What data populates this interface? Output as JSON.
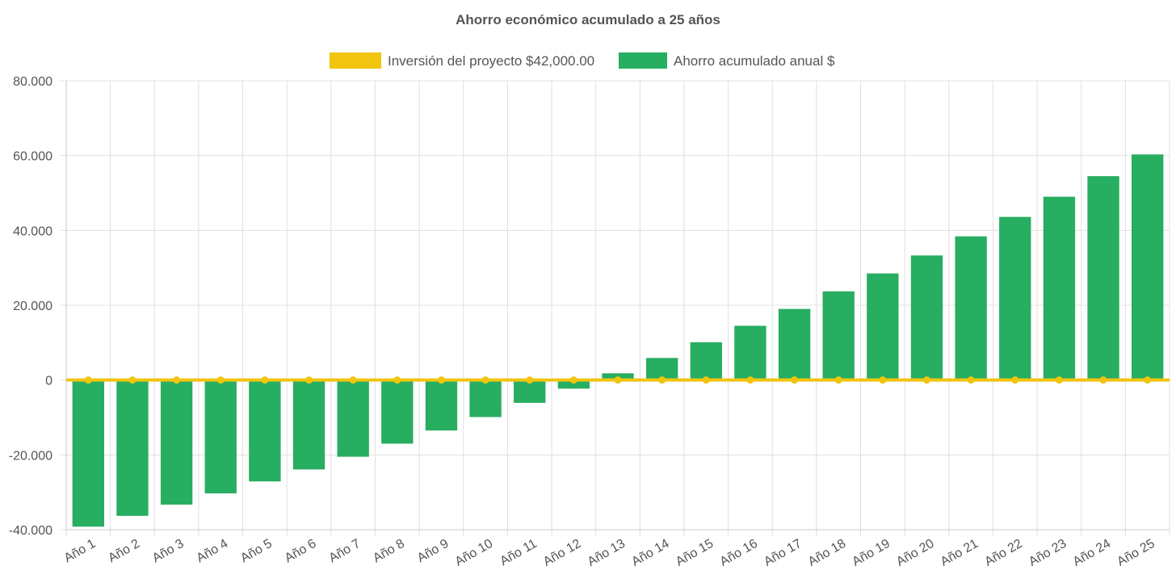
{
  "chart_data": {
    "type": "bar",
    "title": "Ahorro económico acumulado a 25 años",
    "categories": [
      "Año 1",
      "Año 2",
      "Año 3",
      "Año 4",
      "Año 5",
      "Año 6",
      "Año 7",
      "Año 8",
      "Año 9",
      "Año 10",
      "Año 11",
      "Año 12",
      "Año 13",
      "Año 14",
      "Año 15",
      "Año 16",
      "Año 17",
      "Año 18",
      "Año 19",
      "Año 20",
      "Año 21",
      "Año 22",
      "Año 23",
      "Año 24",
      "Año 25"
    ],
    "series": [
      {
        "name": "Inversión del proyecto $42,000.00",
        "kind": "line",
        "color": "#f1c40f",
        "values": [
          0,
          0,
          0,
          0,
          0,
          0,
          0,
          0,
          0,
          0,
          0,
          0,
          0,
          0,
          0,
          0,
          0,
          0,
          0,
          0,
          0,
          0,
          0,
          0,
          0
        ]
      },
      {
        "name": "Ahorro acumulado anual $",
        "kind": "bar",
        "color": "#27ae60",
        "values": [
          -39200,
          -36300,
          -33300,
          -30300,
          -27100,
          -23900,
          -20500,
          -17000,
          -13500,
          -9900,
          -6100,
          -2300,
          1800,
          5900,
          10100,
          14500,
          19000,
          23700,
          28500,
          33300,
          38400,
          43600,
          49000,
          54500,
          60300
        ]
      }
    ],
    "yticks": [
      "80.000",
      "60.000",
      "40.000",
      "20.000",
      "0",
      "-20.000",
      "-40.000"
    ],
    "ylim": [
      -40000,
      80000
    ],
    "grid": true,
    "legend_position": "top"
  }
}
